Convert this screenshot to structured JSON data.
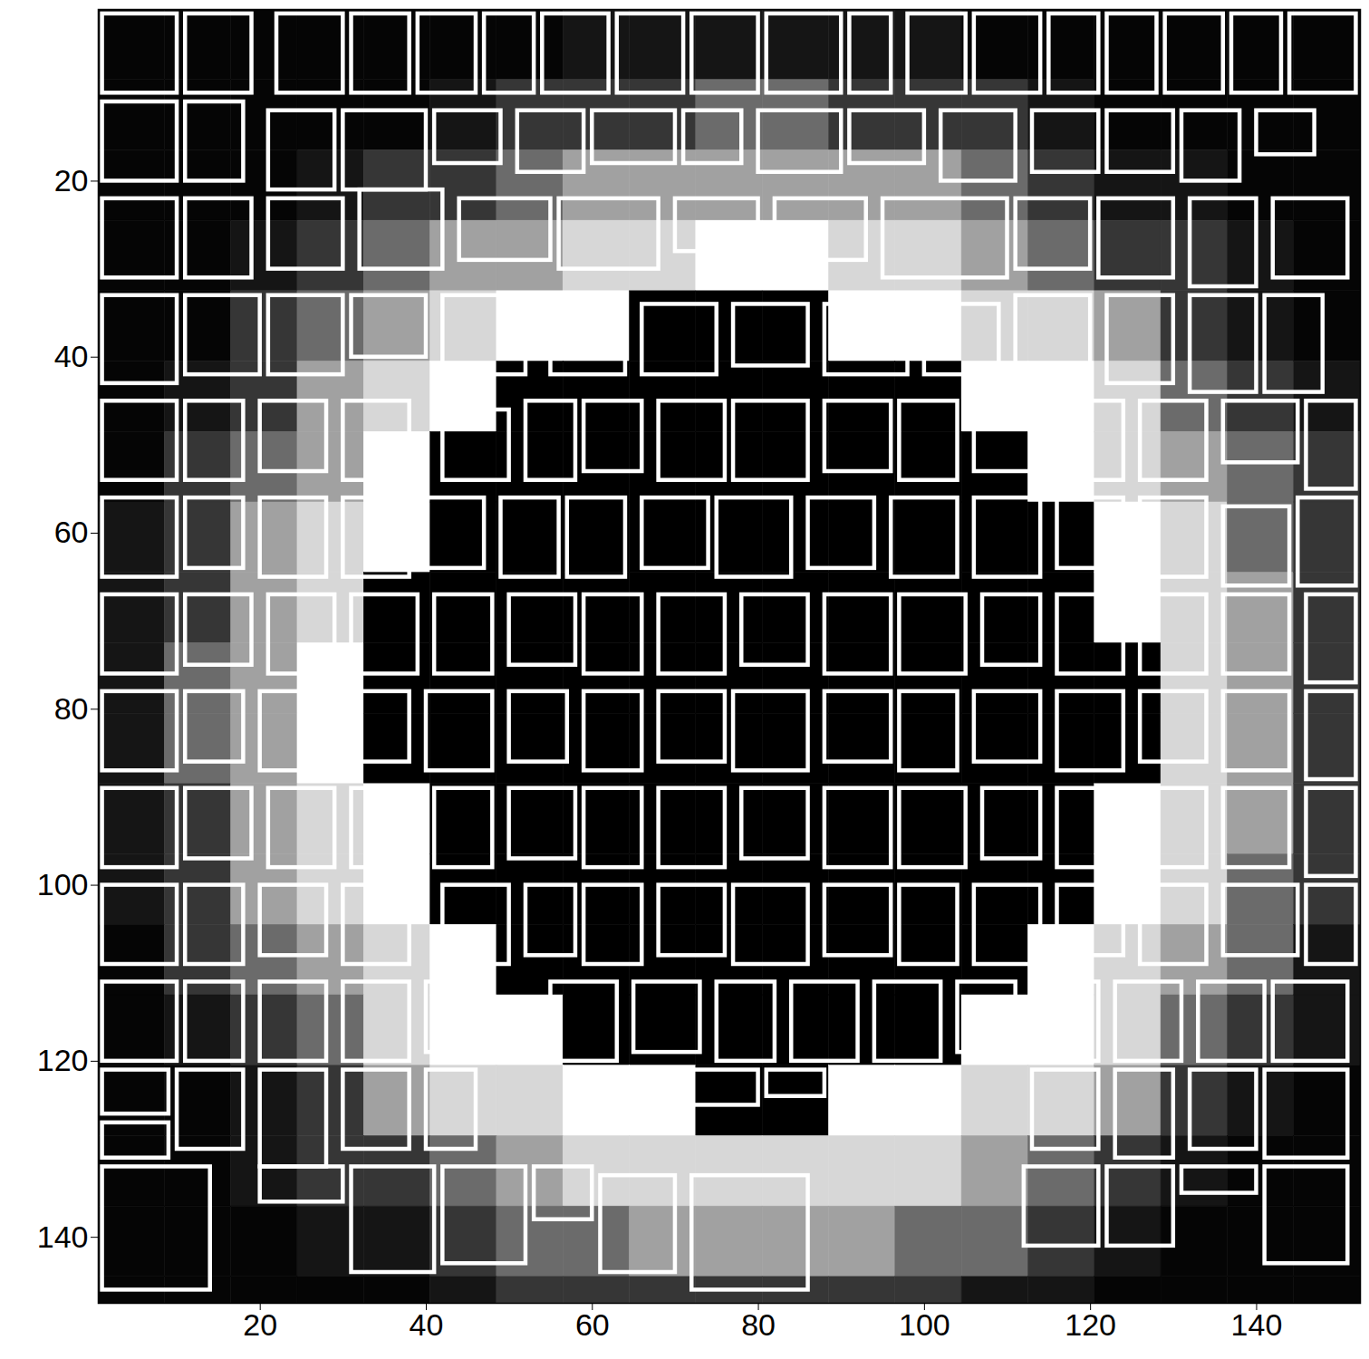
{
  "chart_data": {
    "type": "heatmap",
    "xlim": [
      0.5,
      152.5
    ],
    "ylim": [
      0.5,
      147.5
    ],
    "xticks": [
      20,
      40,
      60,
      80,
      100,
      120,
      140
    ],
    "yticks": [
      20,
      40,
      60,
      80,
      100,
      120,
      140
    ],
    "x_edges": [
      0.5,
      8.5,
      16.5,
      24.5,
      32.5,
      40.5,
      48.5,
      56.5,
      64.5,
      72.5,
      80.5,
      88.5,
      96.5,
      104.5,
      112.5,
      120.5,
      128.5,
      136.5,
      144.5,
      152.5
    ],
    "y_edges": [
      0.5,
      8.5,
      16.5,
      24.5,
      32.5,
      40.5,
      48.5,
      56.5,
      64.5,
      72.5,
      80.5,
      88.5,
      96.5,
      104.5,
      112.5,
      120.5,
      128.5,
      136.5,
      144.5,
      152.5
    ],
    "cells": [
      [
        0.02,
        0.02,
        0.02,
        0.02,
        0.02,
        0.02,
        0.02,
        0.08,
        0.08,
        0.08,
        0.08,
        0.08,
        0.08,
        0.02,
        0.02,
        0.02,
        0.02,
        0.02,
        0.02
      ],
      [
        0.02,
        0.02,
        0.02,
        0.02,
        0.02,
        0.08,
        0.2,
        0.2,
        0.2,
        0.4,
        0.4,
        0.2,
        0.2,
        0.2,
        0.08,
        0.02,
        0.02,
        0.02,
        0.02
      ],
      [
        0.02,
        0.02,
        0.02,
        0.08,
        0.2,
        0.2,
        0.4,
        0.6,
        0.6,
        0.6,
        0.6,
        0.6,
        0.6,
        0.4,
        0.2,
        0.08,
        0.08,
        0.02,
        0.02
      ],
      [
        0.02,
        0.02,
        0.08,
        0.2,
        0.4,
        0.6,
        0.6,
        0.8,
        0.8,
        0.95,
        0.95,
        0.8,
        0.8,
        0.6,
        0.4,
        0.2,
        0.2,
        0.08,
        0.02
      ],
      [
        0.02,
        0.02,
        0.2,
        0.4,
        0.6,
        0.8,
        0.95,
        0.95,
        0,
        0,
        0,
        0.95,
        0.95,
        0.8,
        0.8,
        0.6,
        0.2,
        0.08,
        0.02
      ],
      [
        0.02,
        0.08,
        0.2,
        0.6,
        0.8,
        0.95,
        0,
        0,
        0,
        0,
        0,
        0,
        0,
        0.95,
        0.95,
        0.8,
        0.4,
        0.2,
        0.08
      ],
      [
        0.02,
        0.2,
        0.4,
        0.6,
        0.95,
        0,
        0,
        0,
        0,
        0,
        0,
        0,
        0,
        0,
        0.95,
        0.8,
        0.6,
        0.4,
        0.2
      ],
      [
        0.08,
        0.2,
        0.6,
        0.8,
        0.95,
        0,
        0,
        0,
        0,
        0,
        0,
        0,
        0,
        0,
        0,
        0.95,
        0.8,
        0.4,
        0.2
      ],
      [
        0.08,
        0.2,
        0.6,
        0.8,
        0,
        0,
        0,
        0,
        0,
        0,
        0,
        0,
        0,
        0,
        0,
        0.95,
        0.8,
        0.6,
        0.2
      ],
      [
        0.08,
        0.4,
        0.6,
        0.95,
        0,
        0,
        0,
        0,
        0,
        0,
        0,
        0,
        0,
        0,
        0,
        0,
        0.8,
        0.6,
        0.2
      ],
      [
        0.08,
        0.4,
        0.6,
        0.95,
        0,
        0,
        0,
        0,
        0,
        0,
        0,
        0,
        0,
        0,
        0,
        0,
        0.8,
        0.6,
        0.2
      ],
      [
        0.08,
        0.2,
        0.6,
        0.8,
        0.95,
        0,
        0,
        0,
        0,
        0,
        0,
        0,
        0,
        0,
        0,
        0.95,
        0.8,
        0.6,
        0.2
      ],
      [
        0.08,
        0.2,
        0.6,
        0.8,
        0.95,
        0,
        0,
        0,
        0,
        0,
        0,
        0,
        0,
        0,
        0,
        0.95,
        0.8,
        0.4,
        0.2
      ],
      [
        0.02,
        0.2,
        0.4,
        0.6,
        0.8,
        0.95,
        0,
        0,
        0,
        0,
        0,
        0,
        0,
        0,
        0.95,
        0.8,
        0.6,
        0.4,
        0.08
      ],
      [
        0.02,
        0.08,
        0.2,
        0.4,
        0.8,
        0.95,
        0.95,
        0,
        0,
        0,
        0,
        0,
        0,
        0.95,
        0.95,
        0.8,
        0.4,
        0.2,
        0.08
      ],
      [
        0.02,
        0.02,
        0.08,
        0.2,
        0.6,
        0.8,
        0.8,
        0.95,
        0.95,
        0,
        0,
        0.95,
        0.95,
        0.8,
        0.8,
        0.6,
        0.2,
        0.08,
        0.02
      ],
      [
        0.02,
        0.02,
        0.08,
        0.2,
        0.2,
        0.4,
        0.6,
        0.8,
        0.8,
        0.8,
        0.8,
        0.8,
        0.8,
        0.6,
        0.4,
        0.2,
        0.08,
        0.02,
        0.02
      ],
      [
        0.02,
        0.02,
        0.02,
        0.08,
        0.08,
        0.2,
        0.4,
        0.4,
        0.6,
        0.6,
        0.6,
        0.6,
        0.4,
        0.4,
        0.2,
        0.08,
        0.02,
        0.02,
        0.02
      ],
      [
        0.02,
        0.02,
        0.02,
        0.02,
        0.02,
        0.08,
        0.2,
        0.2,
        0.2,
        0.2,
        0.2,
        0.2,
        0.2,
        0.08,
        0.08,
        0.02,
        0.02,
        0.02,
        0.02
      ]
    ],
    "color": "#ffffff",
    "boxes": [
      [
        1,
        1,
        10,
        10
      ],
      [
        11,
        1,
        19,
        10
      ],
      [
        22,
        1,
        30,
        10
      ],
      [
        31,
        1,
        38,
        10
      ],
      [
        39,
        1,
        46,
        10
      ],
      [
        47,
        1,
        53,
        10
      ],
      [
        54,
        1,
        62,
        10
      ],
      [
        63,
        1,
        71,
        10
      ],
      [
        72,
        1,
        80,
        10
      ],
      [
        81,
        1,
        90,
        10
      ],
      [
        91,
        1,
        96,
        10
      ],
      [
        98,
        1,
        105,
        10
      ],
      [
        106,
        1,
        114,
        10
      ],
      [
        115,
        1,
        121,
        10
      ],
      [
        122,
        1,
        128,
        10
      ],
      [
        129,
        1,
        136,
        10
      ],
      [
        137,
        1,
        143,
        10
      ],
      [
        144,
        1,
        152,
        10
      ],
      [
        1,
        11,
        10,
        20
      ],
      [
        11,
        11,
        18,
        20
      ],
      [
        21,
        12,
        29,
        21
      ],
      [
        30,
        12,
        40,
        21
      ],
      [
        41,
        12,
        49,
        18
      ],
      [
        51,
        12,
        59,
        19
      ],
      [
        60,
        12,
        70,
        18
      ],
      [
        71,
        12,
        78,
        18
      ],
      [
        80,
        12,
        90,
        19
      ],
      [
        91,
        12,
        100,
        18
      ],
      [
        102,
        12,
        111,
        20
      ],
      [
        113,
        12,
        121,
        19
      ],
      [
        122,
        12,
        130,
        19
      ],
      [
        131,
        12,
        138,
        20
      ],
      [
        140,
        12,
        147,
        17
      ],
      [
        1,
        22,
        10,
        31
      ],
      [
        11,
        22,
        19,
        31
      ],
      [
        21,
        22,
        30,
        30
      ],
      [
        32,
        21,
        42,
        30
      ],
      [
        44,
        22,
        55,
        29
      ],
      [
        56,
        22,
        68,
        30
      ],
      [
        70,
        22,
        80,
        28
      ],
      [
        82,
        22,
        93,
        29
      ],
      [
        95,
        22,
        110,
        31
      ],
      [
        111,
        22,
        120,
        30
      ],
      [
        121,
        22,
        130,
        31
      ],
      [
        132,
        22,
        140,
        32
      ],
      [
        142,
        22,
        151,
        31
      ],
      [
        1,
        33,
        10,
        43
      ],
      [
        11,
        33,
        20,
        42
      ],
      [
        21,
        33,
        30,
        42
      ],
      [
        31,
        33,
        40,
        40
      ],
      [
        42,
        33,
        52,
        42
      ],
      [
        55,
        34,
        64,
        42
      ],
      [
        66,
        34,
        75,
        42
      ],
      [
        77,
        34,
        86,
        41
      ],
      [
        88,
        34,
        98,
        42
      ],
      [
        100,
        34,
        109,
        42
      ],
      [
        111,
        33,
        120,
        42
      ],
      [
        122,
        33,
        130,
        43
      ],
      [
        132,
        33,
        140,
        44
      ],
      [
        141,
        33,
        148,
        44
      ],
      [
        1,
        45,
        10,
        54
      ],
      [
        11,
        45,
        18,
        54
      ],
      [
        20,
        45,
        28,
        53
      ],
      [
        30,
        45,
        38,
        54
      ],
      [
        42,
        46,
        50,
        54
      ],
      [
        52,
        45,
        58,
        54
      ],
      [
        59,
        45,
        66,
        53
      ],
      [
        68,
        45,
        76,
        54
      ],
      [
        77,
        45,
        86,
        54
      ],
      [
        88,
        45,
        96,
        53
      ],
      [
        97,
        45,
        104,
        54
      ],
      [
        106,
        45,
        114,
        53
      ],
      [
        116,
        45,
        124,
        54
      ],
      [
        126,
        45,
        134,
        54
      ],
      [
        136,
        45,
        145,
        52
      ],
      [
        146,
        45,
        152,
        55
      ],
      [
        1,
        56,
        10,
        65
      ],
      [
        11,
        56,
        18,
        64
      ],
      [
        20,
        56,
        28,
        65
      ],
      [
        30,
        56,
        38,
        65
      ],
      [
        40,
        56,
        47,
        64
      ],
      [
        49,
        56,
        56,
        65
      ],
      [
        57,
        56,
        64,
        65
      ],
      [
        66,
        56,
        74,
        64
      ],
      [
        75,
        56,
        84,
        65
      ],
      [
        86,
        56,
        94,
        64
      ],
      [
        96,
        56,
        104,
        65
      ],
      [
        106,
        56,
        114,
        65
      ],
      [
        116,
        56,
        124,
        64
      ],
      [
        126,
        56,
        134,
        65
      ],
      [
        136,
        57,
        144,
        66
      ],
      [
        145,
        56,
        152,
        66
      ],
      [
        1,
        67,
        10,
        76
      ],
      [
        11,
        67,
        19,
        75
      ],
      [
        21,
        67,
        29,
        76
      ],
      [
        31,
        67,
        39,
        76
      ],
      [
        41,
        67,
        48,
        76
      ],
      [
        50,
        67,
        58,
        75
      ],
      [
        59,
        67,
        66,
        76
      ],
      [
        68,
        67,
        76,
        76
      ],
      [
        78,
        67,
        86,
        75
      ],
      [
        88,
        67,
        96,
        76
      ],
      [
        97,
        67,
        105,
        76
      ],
      [
        107,
        67,
        114,
        75
      ],
      [
        116,
        67,
        124,
        76
      ],
      [
        126,
        67,
        134,
        76
      ],
      [
        136,
        67,
        144,
        76
      ],
      [
        146,
        67,
        152,
        77
      ],
      [
        1,
        78,
        10,
        87
      ],
      [
        11,
        78,
        18,
        86
      ],
      [
        20,
        78,
        28,
        87
      ],
      [
        30,
        78,
        38,
        86
      ],
      [
        40,
        78,
        48,
        87
      ],
      [
        50,
        78,
        57,
        86
      ],
      [
        59,
        78,
        66,
        87
      ],
      [
        68,
        78,
        76,
        86
      ],
      [
        77,
        78,
        86,
        87
      ],
      [
        88,
        78,
        96,
        86
      ],
      [
        97,
        78,
        104,
        87
      ],
      [
        106,
        78,
        114,
        86
      ],
      [
        116,
        78,
        124,
        87
      ],
      [
        126,
        78,
        134,
        86
      ],
      [
        136,
        78,
        144,
        87
      ],
      [
        146,
        78,
        152,
        88
      ],
      [
        1,
        89,
        10,
        98
      ],
      [
        11,
        89,
        19,
        97
      ],
      [
        21,
        89,
        29,
        98
      ],
      [
        31,
        89,
        39,
        98
      ],
      [
        41,
        89,
        48,
        98
      ],
      [
        50,
        89,
        58,
        97
      ],
      [
        59,
        89,
        66,
        98
      ],
      [
        68,
        89,
        76,
        98
      ],
      [
        78,
        89,
        86,
        97
      ],
      [
        88,
        89,
        96,
        98
      ],
      [
        97,
        89,
        105,
        98
      ],
      [
        107,
        89,
        114,
        97
      ],
      [
        116,
        89,
        124,
        98
      ],
      [
        126,
        89,
        134,
        98
      ],
      [
        136,
        89,
        144,
        98
      ],
      [
        146,
        89,
        152,
        99
      ],
      [
        1,
        100,
        10,
        109
      ],
      [
        11,
        100,
        18,
        109
      ],
      [
        20,
        100,
        28,
        108
      ],
      [
        30,
        100,
        38,
        109
      ],
      [
        42,
        100,
        50,
        109
      ],
      [
        52,
        100,
        58,
        108
      ],
      [
        59,
        100,
        66,
        109
      ],
      [
        68,
        100,
        76,
        108
      ],
      [
        77,
        100,
        86,
        109
      ],
      [
        88,
        100,
        96,
        108
      ],
      [
        97,
        100,
        104,
        109
      ],
      [
        106,
        100,
        114,
        109
      ],
      [
        116,
        100,
        124,
        108
      ],
      [
        126,
        100,
        134,
        109
      ],
      [
        136,
        100,
        145,
        108
      ],
      [
        146,
        100,
        152,
        109
      ],
      [
        1,
        111,
        10,
        120
      ],
      [
        11,
        111,
        18,
        120
      ],
      [
        20,
        111,
        28,
        120
      ],
      [
        30,
        111,
        38,
        120
      ],
      [
        40,
        111,
        47,
        119
      ],
      [
        55,
        111,
        63,
        120
      ],
      [
        65,
        111,
        73,
        119
      ],
      [
        75,
        111,
        82,
        120
      ],
      [
        84,
        111,
        92,
        120
      ],
      [
        94,
        111,
        102,
        120
      ],
      [
        104,
        111,
        111,
        119
      ],
      [
        113,
        111,
        121,
        120
      ],
      [
        123,
        111,
        131,
        120
      ],
      [
        133,
        111,
        141,
        120
      ],
      [
        142,
        111,
        151,
        120
      ],
      [
        1,
        121,
        9,
        126
      ],
      [
        1,
        127,
        9,
        131
      ],
      [
        10,
        121,
        18,
        130
      ],
      [
        20,
        121,
        28,
        132
      ],
      [
        30,
        121,
        38,
        130
      ],
      [
        40,
        121,
        46,
        130
      ],
      [
        60,
        121,
        70,
        126
      ],
      [
        71,
        121,
        80,
        125
      ],
      [
        81,
        121,
        88,
        124
      ],
      [
        113,
        121,
        121,
        130
      ],
      [
        123,
        121,
        130,
        131
      ],
      [
        132,
        121,
        140,
        130
      ],
      [
        141,
        121,
        151,
        131
      ],
      [
        1,
        132,
        14,
        146
      ],
      [
        20,
        132,
        30,
        136
      ],
      [
        31,
        132,
        41,
        144
      ],
      [
        42,
        132,
        52,
        143
      ],
      [
        53,
        132,
        60,
        138
      ],
      [
        61,
        133,
        70,
        144
      ],
      [
        72,
        133,
        86,
        146
      ],
      [
        112,
        132,
        121,
        141
      ],
      [
        122,
        132,
        130,
        141
      ],
      [
        131,
        132,
        140,
        135
      ],
      [
        141,
        132,
        151,
        143
      ]
    ]
  }
}
